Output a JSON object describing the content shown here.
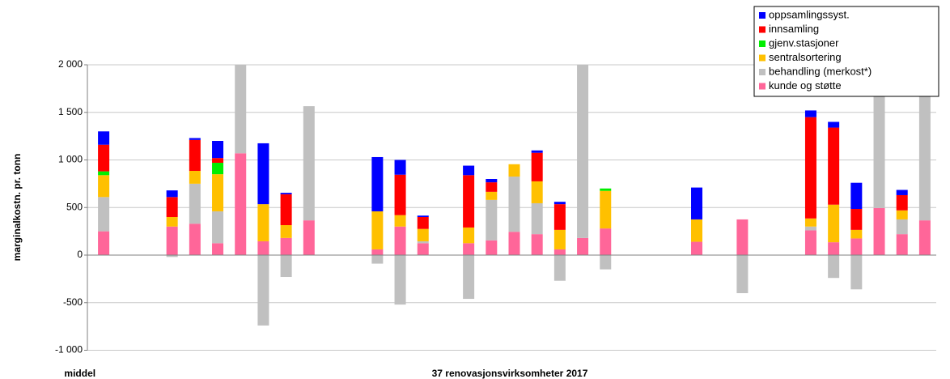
{
  "chart_data": {
    "type": "stacked-bar",
    "y_label": "marginalkostn. pr. tonn",
    "x_label": "37 renovasjonsvirksomheter 2017",
    "categories": [
      "middel",
      null,
      null,
      null,
      null,
      null,
      null,
      null,
      null,
      null,
      null,
      null,
      null,
      null,
      null,
      null,
      null,
      null,
      null,
      null,
      null,
      null,
      null,
      null,
      null,
      null,
      null,
      null,
      null,
      null,
      null,
      null,
      null,
      null,
      null,
      null,
      null
    ],
    "ylim": [
      -1000,
      2000
    ],
    "yticks": [
      {
        "value": 2000,
        "label": "2 000"
      },
      {
        "value": 1500,
        "label": "1 500"
      },
      {
        "value": 1000,
        "label": "1 000"
      },
      500,
      0,
      -500,
      {
        "value": -1000,
        "label": "-1 000"
      }
    ],
    "grid": true,
    "legend": "top-right",
    "series": [
      {
        "name": "kunde og støtte",
        "color": "#ff6699",
        "values": [
          250,
          null,
          null,
          300,
          330,
          125,
          1070,
          145,
          180,
          365,
          null,
          null,
          60,
          300,
          125,
          null,
          125,
          155,
          245,
          220,
          60,
          180,
          280,
          null,
          null,
          null,
          140,
          null,
          375,
          null,
          null,
          260,
          135,
          175,
          495,
          220,
          365
        ]
      },
      {
        "name": "behandling (merkost*)",
        "color": "#c0c0c0",
        "values": [
          360,
          null,
          null,
          -20,
          420,
          335,
          1000,
          -740,
          -230,
          1200,
          null,
          null,
          -90,
          -520,
          20,
          null,
          -460,
          425,
          580,
          325,
          -270,
          1900,
          -150,
          null,
          null,
          null,
          null,
          null,
          -400,
          null,
          null,
          40,
          -240,
          -360,
          1500,
          155,
          1400
        ]
      },
      {
        "name": "sentralsortering",
        "color": "#ffc000",
        "values": [
          230,
          null,
          null,
          100,
          135,
          390,
          null,
          390,
          135,
          null,
          null,
          null,
          400,
          120,
          130,
          null,
          165,
          85,
          130,
          230,
          205,
          null,
          395,
          null,
          null,
          null,
          235,
          null,
          null,
          null,
          null,
          85,
          395,
          90,
          null,
          95,
          null
        ]
      },
      {
        "name": "gjenv.stasjoner",
        "color": "#00ee00",
        "values": [
          40,
          null,
          null,
          null,
          null,
          120,
          null,
          null,
          null,
          null,
          null,
          null,
          null,
          null,
          null,
          null,
          null,
          null,
          null,
          null,
          null,
          null,
          25,
          null,
          null,
          null,
          null,
          null,
          null,
          null,
          null,
          null,
          null,
          null,
          null,
          null,
          null
        ]
      },
      {
        "name": "innsamling",
        "color": "#ff0000",
        "values": [
          280,
          null,
          null,
          210,
          325,
          50,
          null,
          null,
          325,
          null,
          null,
          null,
          null,
          425,
          125,
          null,
          550,
          100,
          null,
          300,
          270,
          null,
          null,
          null,
          null,
          null,
          null,
          null,
          null,
          null,
          null,
          1065,
          810,
          220,
          null,
          160,
          null
        ]
      },
      {
        "name": "oppsamlingssyst.",
        "color": "#0000ff",
        "values": [
          140,
          null,
          null,
          70,
          20,
          180,
          null,
          640,
          15,
          null,
          null,
          null,
          570,
          155,
          15,
          null,
          100,
          35,
          null,
          25,
          25,
          null,
          null,
          null,
          null,
          null,
          335,
          null,
          null,
          null,
          null,
          70,
          60,
          275,
          null,
          55,
          null
        ]
      }
    ]
  }
}
